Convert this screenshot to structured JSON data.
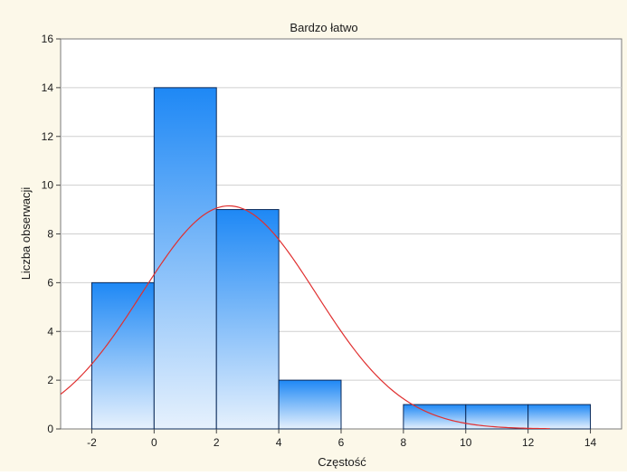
{
  "chart_data": {
    "type": "bar",
    "title": "Bardzo łatwo",
    "xlabel": "Częstość",
    "ylabel": "Liczba obserwacji",
    "xlim": [
      -3,
      15
    ],
    "ylim": [
      0,
      16
    ],
    "x_ticks": [
      -2,
      0,
      2,
      4,
      6,
      8,
      10,
      12,
      14
    ],
    "y_ticks": [
      0,
      2,
      4,
      6,
      8,
      10,
      12,
      14,
      16
    ],
    "grid": true,
    "bins": [
      {
        "from": -2,
        "to": 0,
        "value": 6
      },
      {
        "from": 0,
        "to": 2,
        "value": 14
      },
      {
        "from": 2,
        "to": 4,
        "value": 9
      },
      {
        "from": 4,
        "to": 6,
        "value": 2
      },
      {
        "from": 6,
        "to": 8,
        "value": 0
      },
      {
        "from": 8,
        "to": 10,
        "value": 1
      },
      {
        "from": 10,
        "to": 12,
        "value": 1
      },
      {
        "from": 12,
        "to": 14,
        "value": 1
      }
    ],
    "fit_curve": {
      "type": "normal",
      "mean": 2.4,
      "sd": 2.8,
      "peak": 9.15,
      "x_range": [
        -3,
        12.7
      ]
    },
    "colors": {
      "bar_top": "#1e88f5",
      "bar_bottom": "#e6f1fd",
      "bar_stroke": "#0a2a5a",
      "curve": "#e03030",
      "grid": "#cfcfcf",
      "plot_bg": "#ffffff",
      "frame_bg": "#fcf8e9"
    }
  }
}
